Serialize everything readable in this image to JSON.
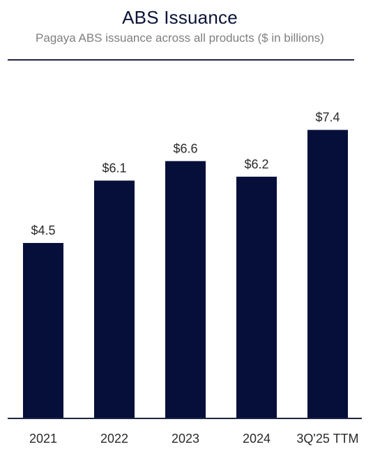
{
  "header": {
    "title": "ABS Issuance",
    "subtitle": "Pagaya ABS issuance across all products ($ in billions)"
  },
  "chart_data": {
    "type": "bar",
    "title": "ABS Issuance",
    "subtitle": "Pagaya ABS issuance across all products ($ in billions)",
    "categories": [
      "2021",
      "2022",
      "2023",
      "2024",
      "3Q'25 TTM"
    ],
    "values": [
      4.5,
      6.1,
      6.6,
      6.2,
      7.4
    ],
    "data_labels": [
      "$4.5",
      "$6.1",
      "$6.6",
      "$6.2",
      "$7.4"
    ],
    "xlabel": "",
    "ylabel": "",
    "ylim": [
      0,
      8.5
    ],
    "grid": false,
    "legend": "none",
    "colors": {
      "bar": "#060f3a",
      "axis": "#1c2541",
      "title": "#0b1437",
      "subtitle": "#7f7f7f",
      "label": "#2a2a2a"
    }
  }
}
